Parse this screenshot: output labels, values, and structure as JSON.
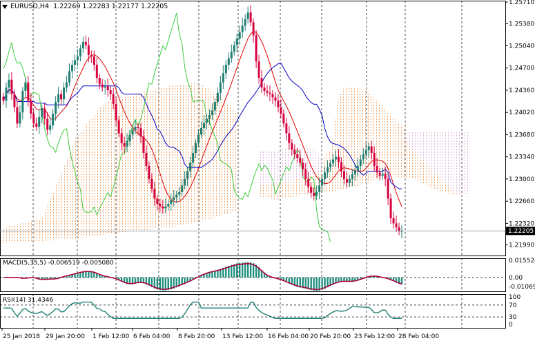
{
  "header": {
    "symbol": "EURUSD,H4",
    "ohlc": "1.22269 1.22283 1.22177 1.22205"
  },
  "macd": {
    "label": "MACD(5,35,5) -0.006519 -0.005080",
    "ticks": [
      "0.015524",
      "0.00",
      "-0.010696"
    ]
  },
  "rsi": {
    "label": "RSI(14) 31.4346",
    "ticks": [
      "100",
      "70",
      "30",
      "0"
    ]
  },
  "price_label": "1.22205",
  "colors": {
    "bull": "#1f7f72",
    "bear": "#d6003f",
    "tenkan": "#e00000",
    "kijun": "#0000c8",
    "chikou": "#3fcc3f",
    "senkou_a": "#f0a060",
    "senkou_b": "#d8b0d8",
    "macd_hist": "#1f8f80",
    "macd_signal": "#b0003a",
    "rsi": "#1f7f72"
  },
  "chart_data": {
    "type": "candlestick",
    "symbol": "EURUSD",
    "timeframe": "H4",
    "ylim": [
      1.2187,
      1.2571
    ],
    "y_ticks": [
      "1.25710",
      "1.25380",
      "1.25040",
      "1.24700",
      "1.24360",
      "1.24020",
      "1.23680",
      "1.23340",
      "1.23000",
      "1.22660",
      "1.22320",
      "1.21990"
    ],
    "x_ticks": [
      "25 Jan 2018",
      "29 Jan 20:00",
      "1 Feb 12:00",
      "6 Feb 04:00",
      "8 Feb 20:00",
      "13 Feb 12:00",
      "16 Feb 04:00",
      "20 Feb 20:00",
      "23 Feb 12:00",
      "28 Feb 04:00"
    ],
    "grid": true,
    "last_price": 1.22205,
    "close": [
      1.242,
      1.244,
      1.2452,
      1.243,
      1.241,
      1.2385,
      1.2402,
      1.2435,
      1.2448,
      1.242,
      1.24,
      1.2385,
      1.238,
      1.2395,
      1.2408,
      1.2392,
      1.2375,
      1.2382,
      1.24,
      1.2418,
      1.243,
      1.2422,
      1.244,
      1.2448,
      1.2465,
      1.2475,
      1.2482,
      1.2488,
      1.25,
      1.251,
      1.2505,
      1.249,
      1.2488,
      1.2475,
      1.2455,
      1.2445,
      1.244,
      1.2442,
      1.2436,
      1.243,
      1.2415,
      1.239,
      1.237,
      1.2355,
      1.235,
      1.2358,
      1.2368,
      1.2375,
      1.238,
      1.2378,
      1.2365,
      1.234,
      1.232,
      1.23,
      1.2285,
      1.227,
      1.2262,
      1.2258,
      1.2255,
      1.2258,
      1.2262,
      1.2268,
      1.2272,
      1.2276,
      1.228,
      1.229,
      1.23,
      1.2312,
      1.2325,
      1.234,
      1.2355,
      1.2368,
      1.2378,
      1.2386,
      1.2392,
      1.2398,
      1.2405,
      1.2418,
      1.2432,
      1.2448,
      1.2462,
      1.2475,
      1.2485,
      1.2495,
      1.2505,
      1.2515,
      1.2525,
      1.2535,
      1.2545,
      1.2555,
      1.254,
      1.252,
      1.248,
      1.2455,
      1.244,
      1.2435,
      1.2432,
      1.243,
      1.2425,
      1.242,
      1.241,
      1.24,
      1.2385,
      1.237,
      1.2355,
      1.2345,
      1.2338,
      1.2332,
      1.2325,
      1.2315,
      1.23,
      1.2288,
      1.2279,
      1.2274,
      1.228,
      1.229,
      1.23,
      1.231,
      1.2318,
      1.2324,
      1.233,
      1.2334,
      1.2326,
      1.2312,
      1.23,
      1.2294,
      1.23,
      1.2307,
      1.2313,
      1.232,
      1.233,
      1.2338,
      1.2344,
      1.235,
      1.234,
      1.232,
      1.231,
      1.2305,
      1.2308,
      1.23,
      1.227,
      1.224,
      1.2232,
      1.2226,
      1.222,
      1.22205
    ],
    "ichimoku": [
      "tenkan-sen",
      "kijun-sen",
      "senkou span A",
      "senkou span B",
      "chikou span"
    ],
    "indicators": [
      {
        "name": "MACD(5,35,5)",
        "values": [
          -0.006519,
          -0.00508
        ],
        "ylim": [
          -0.010696,
          0.015524
        ]
      },
      {
        "name": "RSI(14)",
        "value": 31.4346,
        "levels": [
          70,
          30
        ],
        "ylim": [
          0,
          100
        ]
      }
    ]
  }
}
